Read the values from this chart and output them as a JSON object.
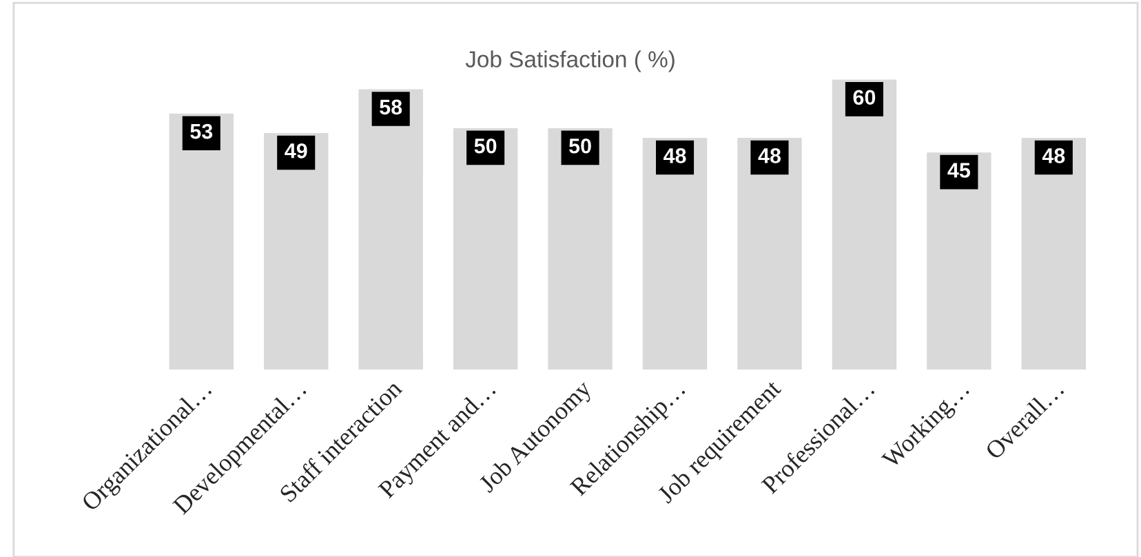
{
  "chart_data": {
    "type": "bar",
    "title": "Job Satisfaction ( %)",
    "categories": [
      "Organizational…",
      "Developmental…",
      "Staff interaction",
      "Payment and…",
      "Job Autonomy",
      "Relationship…",
      "Job requirement",
      "Professional…",
      "Working…",
      "Overall…"
    ],
    "values": [
      53,
      49,
      58,
      50,
      50,
      48,
      48,
      60,
      45,
      48
    ],
    "color": "#d9d9d9",
    "data_labels": true,
    "grid": false,
    "legend": false
  }
}
